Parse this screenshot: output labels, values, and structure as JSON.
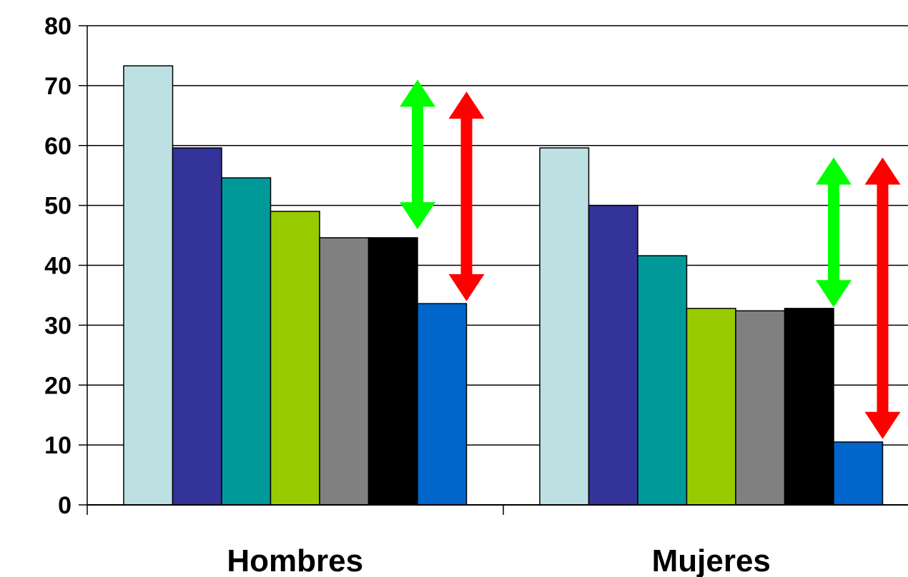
{
  "chart_data": {
    "type": "bar",
    "categories": [
      "Hombres",
      "Mujeres"
    ],
    "ylim": [
      0,
      80
    ],
    "yticks": [
      0,
      10,
      20,
      30,
      40,
      50,
      60,
      70,
      80
    ],
    "grid": true,
    "legend": "none",
    "series": [
      {
        "color": "#BDE0E3",
        "values": [
          73.3,
          59.6
        ]
      },
      {
        "color": "#333399",
        "values": [
          59.6,
          50
        ]
      },
      {
        "color": "#009999",
        "values": [
          54.6,
          41.6
        ]
      },
      {
        "color": "#99CC00",
        "values": [
          49.0,
          32.8
        ]
      },
      {
        "color": "#808080",
        "values": [
          44.6,
          32.4
        ]
      },
      {
        "color": "#000000",
        "values": [
          44.6,
          32.8
        ]
      },
      {
        "color": "#0066CC",
        "values": [
          33.6,
          10.5
        ]
      }
    ],
    "annotations": [
      {
        "type": "double-arrow",
        "color": "#00FF00",
        "category": 0,
        "between_series": [
          5,
          6
        ],
        "from": 46,
        "to": 71
      },
      {
        "type": "double-arrow",
        "color": "#FF0000",
        "category": 0,
        "between_series": [
          6,
          7
        ],
        "from": 34,
        "to": 69
      },
      {
        "type": "double-arrow",
        "color": "#00FF00",
        "category": 1,
        "between_series": [
          5,
          6
        ],
        "from": 33,
        "to": 58
      },
      {
        "type": "double-arrow",
        "color": "#FF0000",
        "category": 1,
        "between_series": [
          6,
          7
        ],
        "from": 11,
        "to": 58
      }
    ]
  }
}
